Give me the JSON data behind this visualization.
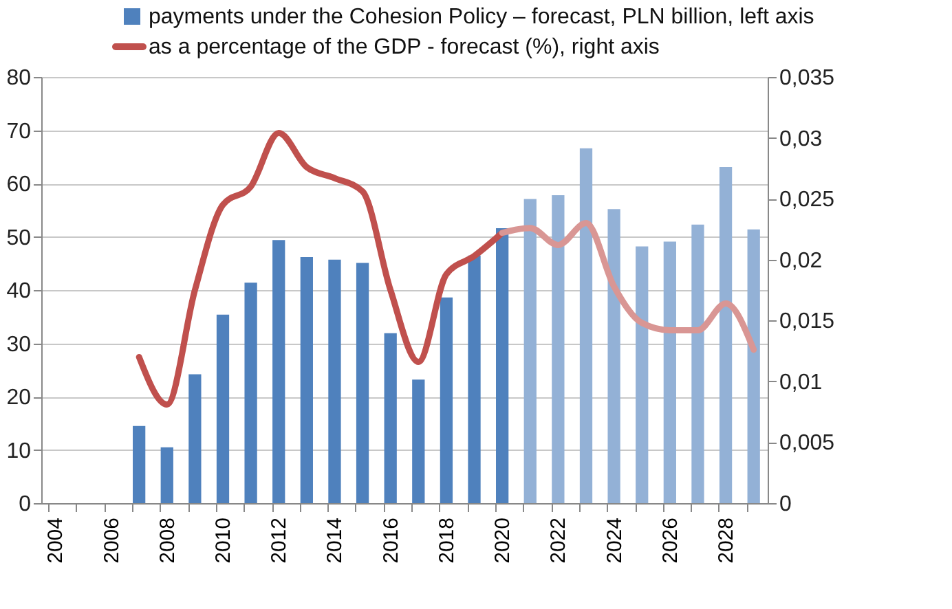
{
  "chart_data": {
    "type": "bar",
    "categories": [
      "2004",
      null,
      "2006",
      null,
      "2008",
      null,
      "2010",
      null,
      "2012",
      null,
      "2014",
      null,
      "2016",
      null,
      "2018",
      null,
      "2020",
      null,
      "2022",
      null,
      "2024",
      null,
      "2026",
      null,
      "2028",
      null
    ],
    "series": [
      {
        "name": "payments under the Cohesion Policy – forecast, PLN billion, left axis",
        "color": "#4f81bd",
        "colors": [
          null,
          null,
          null,
          "#4f81bd",
          "#4f81bd",
          "#4f81bd",
          "#4f81bd",
          "#4f81bd",
          "#4f81bd",
          "#4f81bd",
          "#4f81bd",
          "#4f81bd",
          "#4f81bd",
          "#4f81bd",
          "#4f81bd",
          "#4f81bd",
          "#4f81bd",
          "#93b1d6",
          "#93b1d6",
          "#93b1d6",
          "#93b1d6",
          "#93b1d6",
          "#93b1d6",
          "#93b1d6",
          "#93b1d6",
          "#93b1d6"
        ],
        "values": [
          null,
          null,
          null,
          14.5,
          10.5,
          24.2,
          35.4,
          41.4,
          49.4,
          46.2,
          45.7,
          45.1,
          31.9,
          23.2,
          38.6,
          46.5,
          51.6,
          57.1,
          57.8,
          66.6,
          55.2,
          48.2,
          49.1,
          52.3,
          63.1,
          51.4
        ]
      },
      {
        "name": "as a percentage of the GDP - forecast (%), right axis",
        "type": "line",
        "axis": "y2",
        "color": "#c0504d",
        "values": [
          null,
          null,
          null,
          0.012,
          0.0081,
          0.0175,
          0.0245,
          0.026,
          0.0304,
          0.0276,
          0.0267,
          0.0256,
          0.0175,
          0.0116,
          0.0188,
          0.0203,
          0.0222,
          null,
          null,
          null,
          null,
          null,
          null,
          null,
          null,
          null
        ]
      },
      {
        "type": "line",
        "axis": "y2",
        "color": "#d99694",
        "values": [
          null,
          null,
          null,
          null,
          null,
          null,
          null,
          null,
          null,
          null,
          null,
          null,
          null,
          null,
          null,
          null,
          0.0222,
          0.0226,
          0.0212,
          0.023,
          0.0178,
          0.0148,
          0.0142,
          0.0142,
          0.0164,
          0.0126
        ]
      }
    ],
    "ylim": [
      0,
      80
    ],
    "yticks": [
      0,
      10,
      20,
      30,
      40,
      50,
      60,
      70,
      80
    ],
    "y2lim": [
      0,
      0.035
    ],
    "y2ticks": [
      {
        "value": 0,
        "label": "0"
      },
      {
        "value": 0.005,
        "label": "0,005"
      },
      {
        "value": 0.01,
        "label": "0,01"
      },
      {
        "value": 0.015,
        "label": "0,015"
      },
      {
        "value": 0.02,
        "label": "0,02"
      },
      {
        "value": 0.025,
        "label": "0,025"
      },
      {
        "value": 0.03,
        "label": "0,03"
      },
      {
        "value": 0.035,
        "label": "0,035"
      }
    ],
    "grid": "y",
    "legend": "top",
    "marker": "none",
    "line_style": "solid"
  }
}
